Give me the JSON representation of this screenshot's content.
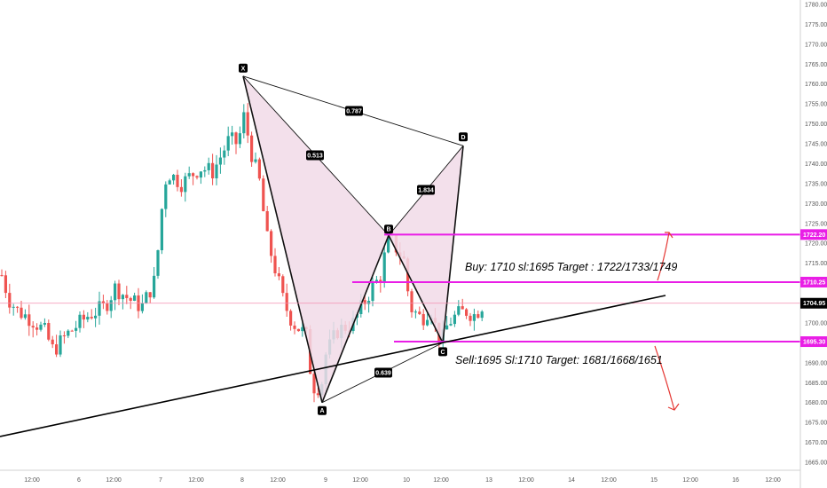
{
  "chart_data": {
    "type": "candlestick",
    "ylim": [
      1662.5,
      1781
    ],
    "price_ticks": [
      1665,
      1670,
      1675,
      1680,
      1685,
      1690,
      1695,
      1700,
      1705,
      1710,
      1715,
      1720,
      1725,
      1730,
      1735,
      1740,
      1745,
      1750,
      1755,
      1760,
      1765,
      1770,
      1775,
      1780
    ],
    "time_labels": [
      "12:00",
      "6",
      "12:00",
      "7",
      "12:00",
      "8",
      "12:00",
      "9",
      "12:00",
      "10",
      "12:00",
      "13",
      "12:00",
      "14",
      "12:00",
      "15",
      "12:00",
      "16",
      "12:00"
    ],
    "price_tags": [
      {
        "label": "1722.20",
        "value": 1722.2,
        "color": "#e91ee6"
      },
      {
        "label": "1710.25",
        "value": 1710.25,
        "color": "#e91ee6"
      },
      {
        "label": "1704.95",
        "value": 1704.95,
        "color": "#000000"
      },
      {
        "label": "1695.30",
        "value": 1695.3,
        "color": "#e91ee6"
      }
    ],
    "current_price": 1704.95,
    "pattern": {
      "points": [
        {
          "name": "X",
          "value": 1762
        },
        {
          "name": "A",
          "value": 1680
        },
        {
          "name": "B",
          "value": 1722
        },
        {
          "name": "C",
          "value": 1695
        },
        {
          "name": "D",
          "value": 1744.5
        }
      ],
      "ratios": [
        "0.787",
        "0.513",
        "1.834",
        "0.639"
      ]
    },
    "annotations": {
      "buy": "Buy: 1710 sl:1695 Target : 1722/1733/1749",
      "sell": "Sell:1695 Sl:1710 Target: 1681/1668/1651"
    },
    "colors": {
      "up": "#26a69a",
      "down": "#ef5350",
      "magenta": "#e91ee6",
      "pattern_fill": "#f1dbe8",
      "current_line": "#f48fb1"
    }
  }
}
